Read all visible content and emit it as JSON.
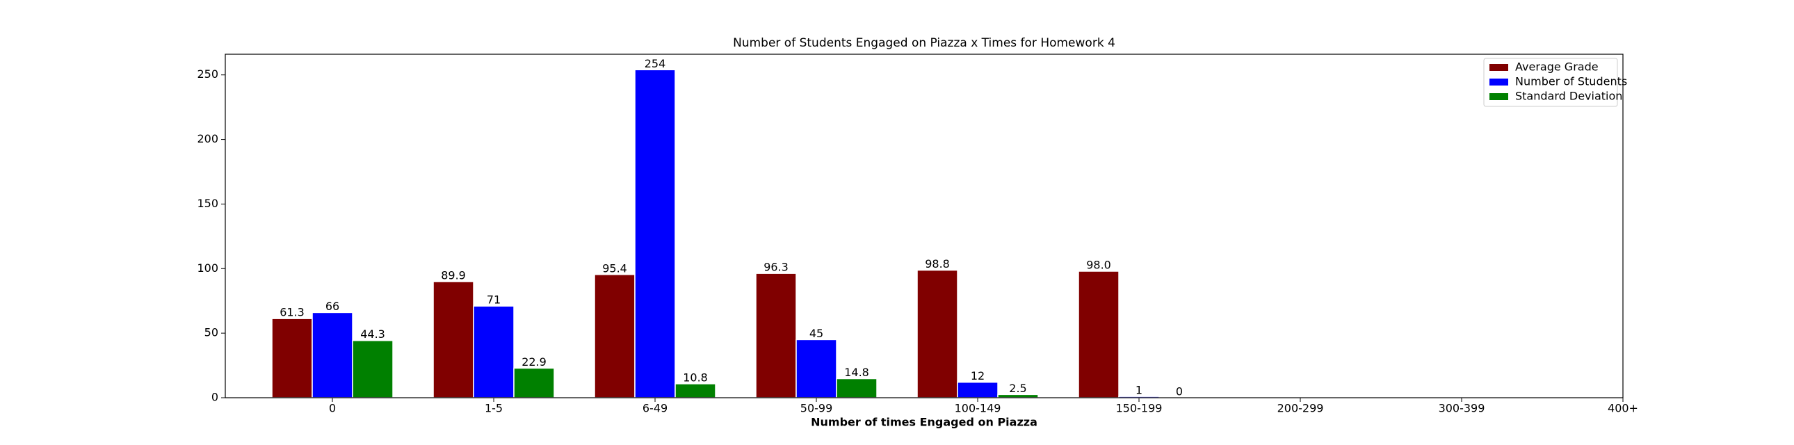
{
  "chart_data": {
    "type": "bar",
    "title": "Number of Students Engaged on Piazza x Times for Homework 4",
    "xlabel": "Number of times Engaged on Piazza",
    "categories": [
      "0",
      "1-5",
      "6-49",
      "50-99",
      "100-149",
      "150-199",
      "200-299",
      "300-399",
      "400+"
    ],
    "series": [
      {
        "name": "Average Grade",
        "color": "#800000",
        "values": [
          61.3,
          89.9,
          95.4,
          96.3,
          98.8,
          98.0,
          null,
          null,
          null
        ],
        "value_labels": [
          "61.3",
          "89.9",
          "95.4",
          "96.3",
          "98.8",
          "98.0",
          null,
          null,
          null
        ]
      },
      {
        "name": "Number of Students",
        "color": "#0000ff",
        "values": [
          66,
          71,
          254,
          45,
          12,
          1,
          null,
          null,
          null
        ]
      },
      {
        "name": "Standard Deviation",
        "color": "#008000",
        "values": [
          44.3,
          22.9,
          10.8,
          14.8,
          2.5,
          0,
          null,
          null,
          null
        ]
      }
    ],
    "ylim": [
      0,
      266
    ],
    "yticks": [
      0,
      50,
      100,
      150,
      200,
      250
    ],
    "legend": "upper right"
  }
}
